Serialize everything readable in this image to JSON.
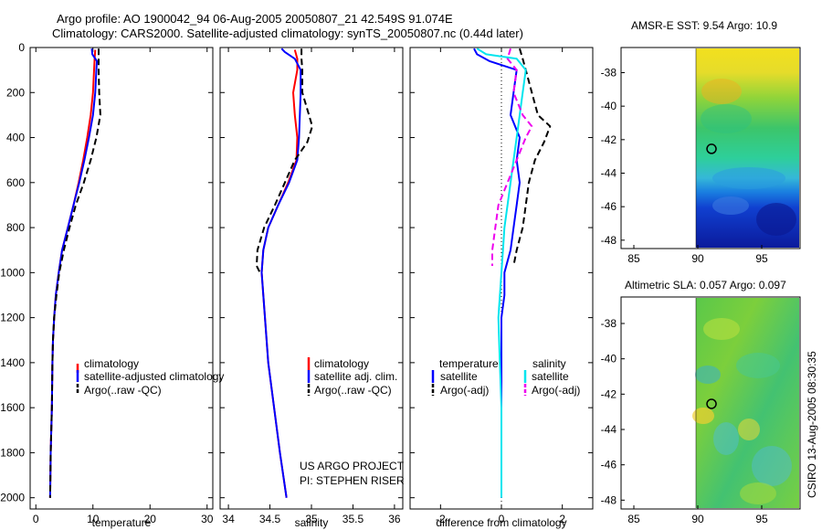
{
  "header": {
    "line1": "Argo profile: AO 1900042_94 06-Aug-2005 20050807_21 42.549S 91.074E",
    "line2": "Climatology: CARS2000. Satellite-adjusted climatology: synTS_20050807.nc (0.44d later)"
  },
  "credits": {
    "line1": "US ARGO PROJECT",
    "line2": "PI: STEPHEN RISER"
  },
  "side_text": "CSIRO 13-Aug-2005 08:30:35",
  "colors": {
    "red": "#ff0000",
    "blue": "#0000ff",
    "black": "#000000",
    "cyan": "#00e5ee",
    "magenta": "#ee00ee"
  },
  "chart_data": [
    {
      "type": "line",
      "name": "temperature",
      "xlabel": "temperature",
      "ylabel": "",
      "xlim": [
        -1,
        31
      ],
      "ylim": [
        2050,
        0
      ],
      "xticks": [
        0,
        10,
        20,
        30
      ],
      "yticks": [
        0,
        200,
        400,
        600,
        800,
        1000,
        1200,
        1400,
        1600,
        1800,
        2000
      ],
      "legend": [
        "climatology",
        "satellite-adjusted climatology",
        "Argo(..raw -QC)"
      ],
      "series": [
        {
          "name": "climatology",
          "color": "red",
          "dash": "",
          "points": [
            [
              10.4,
              10
            ],
            [
              10.3,
              50
            ],
            [
              10.2,
              100
            ],
            [
              10.0,
              200
            ],
            [
              9.6,
              300
            ],
            [
              9.0,
              400
            ],
            [
              8.3,
              500
            ],
            [
              7.5,
              600
            ],
            [
              6.6,
              700
            ],
            [
              5.6,
              800
            ],
            [
              4.6,
              900
            ],
            [
              4.0,
              1000
            ],
            [
              3.5,
              1100
            ],
            [
              3.2,
              1200
            ],
            [
              3.0,
              1300
            ],
            [
              2.9,
              1400
            ],
            [
              2.8,
              1600
            ],
            [
              2.6,
              1800
            ],
            [
              2.5,
              2000
            ]
          ]
        },
        {
          "name": "satellite-adjusted climatology",
          "color": "blue",
          "dash": "",
          "points": [
            [
              9.8,
              5
            ],
            [
              9.9,
              30
            ],
            [
              10.7,
              60
            ],
            [
              10.6,
              100
            ],
            [
              10.4,
              200
            ],
            [
              10.0,
              300
            ],
            [
              9.3,
              400
            ],
            [
              8.5,
              500
            ],
            [
              7.6,
              600
            ],
            [
              6.6,
              700
            ],
            [
              5.6,
              800
            ],
            [
              4.6,
              900
            ],
            [
              4.0,
              1000
            ],
            [
              3.5,
              1100
            ],
            [
              3.2,
              1200
            ],
            [
              3.0,
              1300
            ],
            [
              2.9,
              1400
            ],
            [
              2.8,
              1600
            ],
            [
              2.6,
              1800
            ],
            [
              2.5,
              2000
            ]
          ]
        },
        {
          "name": "Argo(..raw -QC)",
          "color": "black",
          "dash": "7,4",
          "points": [
            [
              11.0,
              5
            ],
            [
              11.0,
              50
            ],
            [
              11.0,
              100
            ],
            [
              11.1,
              200
            ],
            [
              11.3,
              300
            ],
            [
              10.6,
              400
            ],
            [
              9.6,
              500
            ],
            [
              8.4,
              600
            ],
            [
              7.0,
              700
            ],
            [
              5.9,
              800
            ],
            [
              4.9,
              900
            ],
            [
              4.1,
              1000
            ],
            [
              3.6,
              1100
            ],
            [
              3.2,
              1200
            ],
            [
              3.0,
              1300
            ],
            [
              2.9,
              1400
            ],
            [
              2.8,
              1600
            ],
            [
              2.6,
              1800
            ],
            [
              2.5,
              2000
            ]
          ]
        }
      ]
    },
    {
      "type": "line",
      "name": "salinity",
      "xlabel": "salinity",
      "ylabel": "",
      "xlim": [
        33.9,
        36.1
      ],
      "ylim": [
        2050,
        0
      ],
      "xticks": [
        34,
        34.5,
        35,
        35.5,
        36
      ],
      "yticks": [
        0,
        200,
        400,
        600,
        800,
        1000,
        1200,
        1400,
        1600,
        1800,
        2000
      ],
      "legend": [
        "climatology",
        "satellite adj. clim.",
        "Argo(..raw -QC)"
      ],
      "series": [
        {
          "name": "climatology",
          "color": "red",
          "dash": "",
          "points": [
            [
              34.8,
              10
            ],
            [
              34.83,
              50
            ],
            [
              34.83,
              100
            ],
            [
              34.78,
              200
            ],
            [
              34.8,
              300
            ],
            [
              34.83,
              400
            ],
            [
              34.82,
              500
            ],
            [
              34.72,
              600
            ],
            [
              34.6,
              700
            ],
            [
              34.48,
              800
            ],
            [
              34.42,
              900
            ],
            [
              34.4,
              1000
            ],
            [
              34.42,
              1100
            ],
            [
              34.44,
              1200
            ],
            [
              34.48,
              1400
            ],
            [
              34.55,
              1600
            ],
            [
              34.62,
              1800
            ],
            [
              34.7,
              2000
            ]
          ]
        },
        {
          "name": "satellite adj. clim.",
          "color": "blue",
          "dash": "",
          "points": [
            [
              34.64,
              5
            ],
            [
              34.68,
              20
            ],
            [
              34.8,
              50
            ],
            [
              34.87,
              100
            ],
            [
              34.87,
              200
            ],
            [
              34.86,
              300
            ],
            [
              34.85,
              400
            ],
            [
              34.83,
              500
            ],
            [
              34.73,
              600
            ],
            [
              34.6,
              700
            ],
            [
              34.48,
              800
            ],
            [
              34.42,
              900
            ],
            [
              34.4,
              1000
            ],
            [
              34.42,
              1100
            ],
            [
              34.44,
              1200
            ],
            [
              34.48,
              1400
            ],
            [
              34.55,
              1600
            ],
            [
              34.62,
              1800
            ],
            [
              34.7,
              2000
            ]
          ]
        },
        {
          "name": "Argo(..raw -QC)",
          "color": "black",
          "dash": "7,4",
          "points": [
            [
              34.88,
              5
            ],
            [
              34.88,
              50
            ],
            [
              34.89,
              100
            ],
            [
              34.89,
              200
            ],
            [
              34.97,
              300
            ],
            [
              35.01,
              350
            ],
            [
              34.95,
              420
            ],
            [
              34.8,
              500
            ],
            [
              34.68,
              600
            ],
            [
              34.56,
              700
            ],
            [
              34.43,
              800
            ],
            [
              34.35,
              900
            ],
            [
              34.34,
              970
            ],
            [
              34.38,
              1000
            ]
          ]
        }
      ]
    },
    {
      "type": "line",
      "name": "difference",
      "xlabel": "difference from climatology",
      "ylabel": "",
      "xlim": [
        -3,
        3
      ],
      "ylim": [
        2050,
        0
      ],
      "xticks": [
        -2,
        0,
        2
      ],
      "yticks": [
        0,
        200,
        400,
        600,
        800,
        1000,
        1200,
        1400,
        1600,
        1800,
        2000
      ],
      "legend_headers": [
        "temperature",
        "salinity"
      ],
      "legend": [
        "satellite",
        "Argo(-adj)",
        "satellite",
        "Argo(-adj)"
      ],
      "series": [
        {
          "name": "temperature satellite",
          "color": "blue",
          "dash": "",
          "points": [
            [
              -0.9,
              5
            ],
            [
              -0.8,
              30
            ],
            [
              -0.4,
              60
            ],
            [
              0.5,
              100
            ],
            [
              0.4,
              200
            ],
            [
              0.3,
              300
            ],
            [
              0.6,
              400
            ],
            [
              0.5,
              500
            ],
            [
              0.6,
              600
            ],
            [
              0.5,
              700
            ],
            [
              0.4,
              800
            ],
            [
              0.3,
              900
            ],
            [
              0.1,
              1000
            ],
            [
              0.1,
              1100
            ],
            [
              0.0,
              1200
            ],
            [
              0.0,
              1400
            ],
            [
              0.0,
              1600
            ],
            [
              0.0,
              2000
            ]
          ]
        },
        {
          "name": "temperature Argo(-adj)",
          "color": "black",
          "dash": "7,4",
          "points": [
            [
              0.6,
              5
            ],
            [
              0.7,
              50
            ],
            [
              0.8,
              100
            ],
            [
              1.0,
              200
            ],
            [
              1.2,
              300
            ],
            [
              1.6,
              350
            ],
            [
              1.4,
              420
            ],
            [
              1.1,
              500
            ],
            [
              0.9,
              600
            ],
            [
              0.8,
              700
            ],
            [
              0.7,
              800
            ],
            [
              0.5,
              900
            ],
            [
              0.4,
              970
            ]
          ]
        },
        {
          "name": "salinity satellite",
          "color": "cyan",
          "dash": "",
          "points": [
            [
              -0.8,
              5
            ],
            [
              -0.5,
              30
            ],
            [
              0.5,
              50
            ],
            [
              0.8,
              100
            ],
            [
              0.7,
              200
            ],
            [
              0.6,
              300
            ],
            [
              0.5,
              400
            ],
            [
              0.4,
              500
            ],
            [
              0.3,
              600
            ],
            [
              0.2,
              700
            ],
            [
              0.1,
              800
            ],
            [
              0.05,
              900
            ],
            [
              0.0,
              1000
            ],
            [
              -0.1,
              1200
            ],
            [
              -0.05,
              1400
            ],
            [
              0.0,
              1600
            ],
            [
              0.0,
              1800
            ],
            [
              0.0,
              2000
            ]
          ]
        },
        {
          "name": "salinity Argo(-adj)",
          "color": "magenta",
          "dash": "7,4",
          "points": [
            [
              0.3,
              5
            ],
            [
              0.2,
              50
            ],
            [
              0.5,
              100
            ],
            [
              0.4,
              200
            ],
            [
              0.7,
              300
            ],
            [
              1.0,
              350
            ],
            [
              0.8,
              400
            ],
            [
              0.5,
              500
            ],
            [
              0.2,
              600
            ],
            [
              -0.1,
              700
            ],
            [
              -0.2,
              800
            ],
            [
              -0.3,
              900
            ],
            [
              -0.3,
              970
            ]
          ]
        }
      ]
    },
    {
      "type": "heatmap",
      "name": "sst_map",
      "title": "AMSR-E SST: 9.54 Argo: 10.9",
      "xlim": [
        84,
        98
      ],
      "ylim": [
        -48.5,
        -36.5
      ],
      "xticks": [
        85,
        90,
        95
      ],
      "yticks": [
        -38,
        -40,
        -42,
        -44,
        -46,
        -48
      ],
      "no_data_west_of": 90,
      "argo_position": [
        91.074,
        -42.549
      ]
    },
    {
      "type": "heatmap",
      "name": "sla_map",
      "title": "Altimetric SLA: 0.057 Argo: 0.097",
      "xlim": [
        84,
        98
      ],
      "ylim": [
        -48.5,
        -36.5
      ],
      "xticks": [
        85,
        90,
        95
      ],
      "yticks": [
        -38,
        -40,
        -42,
        -44,
        -46,
        -48
      ],
      "no_data_west_of": 90,
      "argo_position": [
        91.074,
        -42.549
      ]
    }
  ]
}
